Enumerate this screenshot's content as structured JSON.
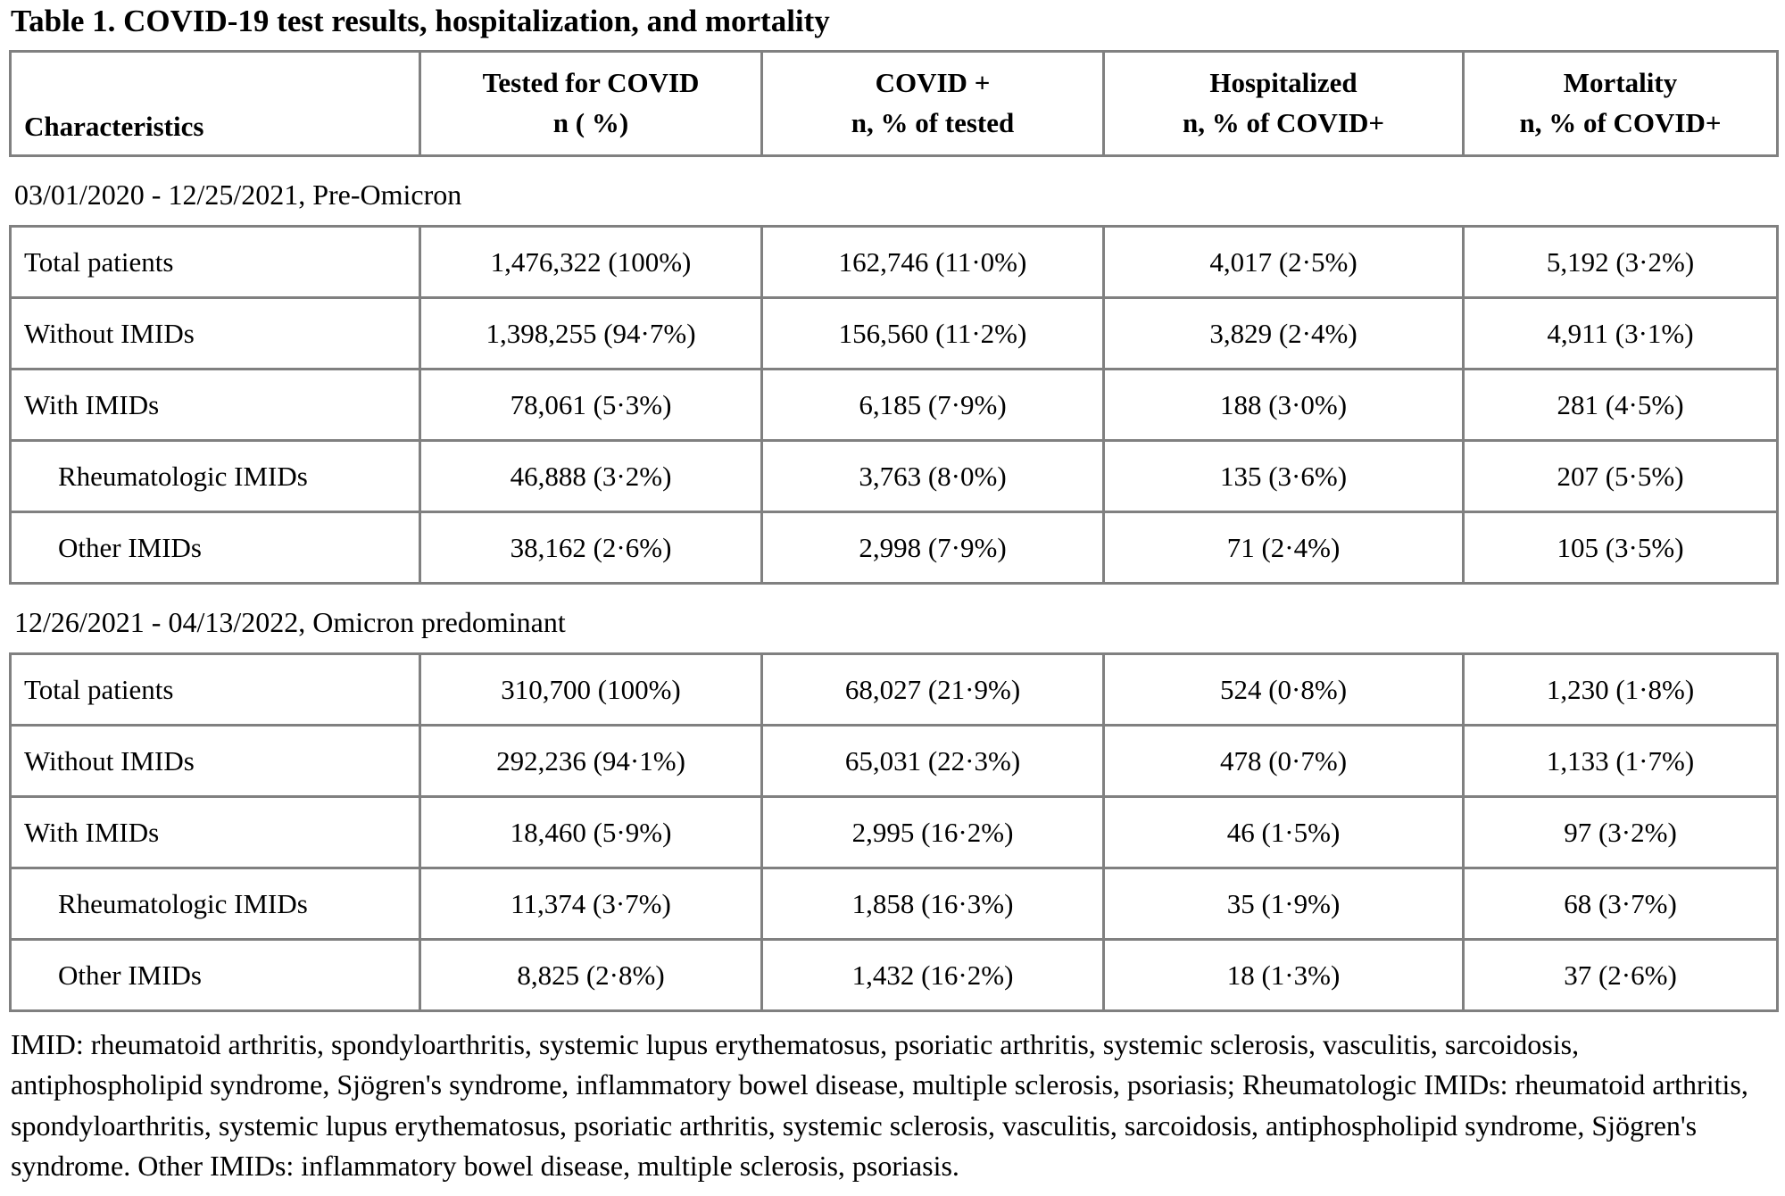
{
  "title": "Table 1. COVID-19 test results, hospitalization, and mortality",
  "header": {
    "characteristics": "Characteristics",
    "cols": [
      {
        "line1": "Tested for COVID",
        "line2": "n ( %)"
      },
      {
        "line1": "COVID +",
        "line2": "n, % of tested"
      },
      {
        "line1": "Hospitalized",
        "line2": "n, % of COVID+"
      },
      {
        "line1": "Mortality",
        "line2": "n, % of COVID+"
      }
    ]
  },
  "sections": [
    {
      "label": "03/01/2020 - 12/25/2021, Pre-Omicron",
      "rows": [
        {
          "characteristic": "Total patients",
          "indent": false,
          "tested": "1,476,322 (100%)",
          "covid_pos": "162,746 (11·0%)",
          "hospitalized": "4,017 (2·5%)",
          "mortality": "5,192 (3·2%)"
        },
        {
          "characteristic": "Without IMIDs",
          "indent": false,
          "tested": "1,398,255 (94·7%)",
          "covid_pos": "156,560 (11·2%)",
          "hospitalized": "3,829 (2·4%)",
          "mortality": "4,911 (3·1%)"
        },
        {
          "characteristic": "With IMIDs",
          "indent": false,
          "tested": "78,061 (5·3%)",
          "covid_pos": "6,185 (7·9%)",
          "hospitalized": "188 (3·0%)",
          "mortality": "281 (4·5%)"
        },
        {
          "characteristic": "Rheumatologic IMIDs",
          "indent": true,
          "tested": "46,888 (3·2%)",
          "covid_pos": "3,763 (8·0%)",
          "hospitalized": "135 (3·6%)",
          "mortality": "207 (5·5%)"
        },
        {
          "characteristic": "Other IMIDs",
          "indent": true,
          "tested": "38,162 (2·6%)",
          "covid_pos": "2,998 (7·9%)",
          "hospitalized": "71 (2·4%)",
          "mortality": "105 (3·5%)"
        }
      ]
    },
    {
      "label": "12/26/2021 - 04/13/2022, Omicron predominant",
      "rows": [
        {
          "characteristic": "Total patients",
          "indent": false,
          "tested": "310,700 (100%)",
          "covid_pos": "68,027 (21·9%)",
          "hospitalized": "524 (0·8%)",
          "mortality": "1,230 (1·8%)"
        },
        {
          "characteristic": "Without IMIDs",
          "indent": false,
          "tested": "292,236 (94·1%)",
          "covid_pos": "65,031 (22·3%)",
          "hospitalized": "478 (0·7%)",
          "mortality": "1,133 (1·7%)"
        },
        {
          "characteristic": "With IMIDs",
          "indent": false,
          "tested": "18,460 (5·9%)",
          "covid_pos": "2,995 (16·2%)",
          "hospitalized": "46 (1·5%)",
          "mortality": "97 (3·2%)"
        },
        {
          "characteristic": "Rheumatologic IMIDs",
          "indent": true,
          "tested": "11,374 (3·7%)",
          "covid_pos": "1,858 (16·3%)",
          "hospitalized": "35 (1·9%)",
          "mortality": "68 (3·7%)"
        },
        {
          "characteristic": "Other IMIDs",
          "indent": true,
          "tested": "8,825 (2·8%)",
          "covid_pos": "1,432 (16·2%)",
          "hospitalized": "18 (1·3%)",
          "mortality": "37 (2·6%)"
        }
      ]
    }
  ],
  "footnote": "IMID: rheumatoid arthritis, spondyloarthritis, systemic lupus erythematosus, psoriatic arthritis, systemic sclerosis, vasculitis, sarcoidosis, antiphospholipid syndrome, Sjögren's syndrome, inflammatory bowel disease, multiple sclerosis, psoriasis; Rheumatologic IMIDs: rheumatoid arthritis, spondyloarthritis, systemic lupus erythematosus, psoriatic arthritis, systemic sclerosis, vasculitis, sarcoidosis, antiphospholipid syndrome, Sjögren's syndrome. Other IMIDs: inflammatory bowel disease, multiple sclerosis, psoriasis.",
  "colors": {
    "border": "#808080",
    "text": "#000000",
    "background": "#ffffff"
  }
}
